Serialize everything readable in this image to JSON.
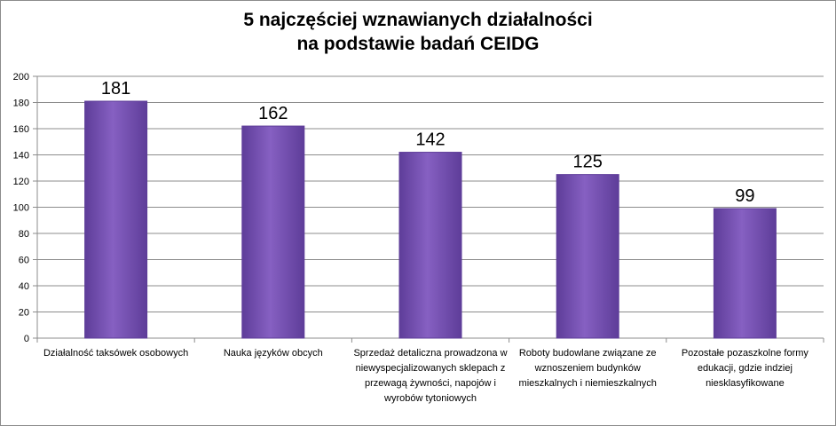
{
  "chart_data": {
    "type": "bar",
    "title": "5 najczęściej wznawianych działalności\nna podstawie badań CEIDG",
    "xlabel": "",
    "ylabel": "",
    "ylim": [
      0,
      200
    ],
    "yticks": [
      0,
      20,
      40,
      60,
      80,
      100,
      120,
      140,
      160,
      180,
      200
    ],
    "grid": true,
    "legend": "none",
    "categories": [
      "Działalność taksówek osobowych",
      "Nauka języków obcych",
      "Sprzedaż detaliczna prowadzona w niewyspecjalizowanych sklepach z przewagą żywności, napojów i wyrobów tytoniowych",
      "Roboty budowlane związane ze wznoszeniem budynków mieszkalnych i niemieszkalnych",
      "Pozostałe pozaszkolne formy edukacji, gdzie indziej niesklasyfikowane"
    ],
    "values": [
      181,
      162,
      142,
      125,
      99
    ],
    "bar_color": "#8660c2",
    "bar_color_dark": "#5e3d99"
  }
}
